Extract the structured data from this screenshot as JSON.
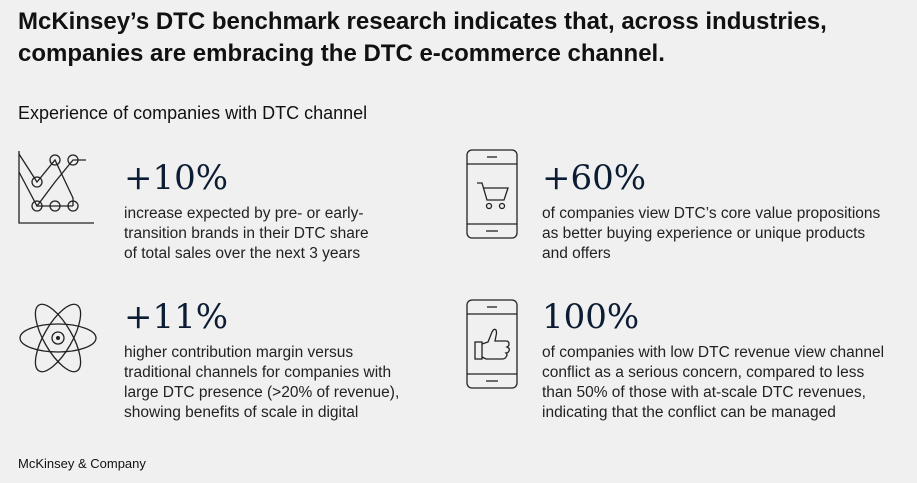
{
  "headline": "McKinsey’s DTC benchmark research indicates that, across industries, companies are embracing the DTC e-commerce channel.",
  "subhead": "Experience of companies with DTC channel",
  "stats": [
    {
      "icon": "line-chart-icon",
      "value": "+10%",
      "lines": [
        "increase expected by pre- or early-",
        "transition brands in their DTC share",
        "of total sales over the next 3 years"
      ]
    },
    {
      "icon": "mobile-cart-icon",
      "value": "+60%",
      "lines": [
        "of companies view DTC’s core value propositions",
        "as better buying experience or unique products",
        "and offers"
      ]
    },
    {
      "icon": "atom-icon",
      "value": "+11%",
      "lines": [
        "higher contribution margin versus",
        "traditional channels for companies with",
        "large DTC presence (>20% of revenue),",
        "showing benefits of scale in digital"
      ]
    },
    {
      "icon": "mobile-thumbs-up-icon",
      "value": "100%",
      "lines": [
        "of companies with low DTC revenue view channel",
        "conflict as a serious concern, compared to less",
        "than 50% of those with at-scale DTC revenues,",
        "indicating that the conflict can be managed"
      ]
    }
  ],
  "footer": "McKinsey & Company",
  "colors": {
    "background": "#f0f0f0",
    "value_text": "#0b1c33",
    "body_text": "#222222"
  }
}
